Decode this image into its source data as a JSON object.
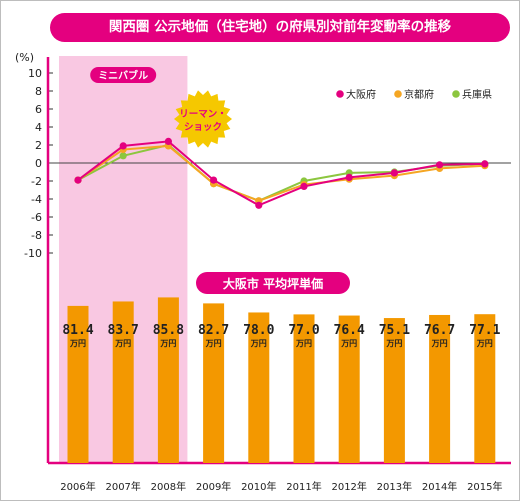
{
  "title": "関西圏 公示地価（住宅地）の府県別対前年変動率の推移",
  "chart_data": [
    {
      "type": "line",
      "ylabel": "(%)",
      "ylim": [
        -10,
        10
      ],
      "y_ticks": [
        "10",
        "8",
        "6",
        "4",
        "2",
        "0",
        "-2",
        "-4",
        "-6",
        "-8",
        "-10"
      ],
      "categories": [
        "2006年",
        "2007年",
        "2008年",
        "2009年",
        "2010年",
        "2011年",
        "2012年",
        "2013年",
        "2014年",
        "2015年"
      ],
      "series": [
        {
          "name": "大阪府",
          "color": "#e4007f",
          "values": [
            -1.9,
            1.9,
            2.4,
            -1.9,
            -4.7,
            -2.6,
            -1.6,
            -1.1,
            -0.2,
            -0.1
          ]
        },
        {
          "name": "京都府",
          "color": "#f5a623",
          "values": [
            -1.9,
            1.5,
            1.9,
            -2.3,
            -4.2,
            -2.4,
            -1.8,
            -1.4,
            -0.6,
            -0.3
          ]
        },
        {
          "name": "兵庫県",
          "color": "#8cc63f",
          "values": [
            -1.9,
            0.8,
            2.0,
            -2.3,
            -4.2,
            -2.0,
            -1.1,
            -1.0,
            -0.3,
            -0.1
          ]
        }
      ],
      "legend_position": "top-right",
      "grid": false,
      "highlight": {
        "label": "ミニバブル",
        "from": "2006年",
        "to": "2008年",
        "color": "#f9c8e2"
      },
      "annotation": {
        "lines": [
          "リーマン・",
          "ショック"
        ],
        "at": "2008年"
      }
    },
    {
      "type": "bar",
      "title": "大阪市 平均坪単価",
      "categories": [
        "2006年",
        "2007年",
        "2008年",
        "2009年",
        "2010年",
        "2011年",
        "2012年",
        "2013年",
        "2014年",
        "2015年"
      ],
      "values": [
        81.4,
        83.7,
        85.8,
        82.7,
        78.0,
        77.0,
        76.4,
        75.1,
        76.7,
        77.1
      ],
      "value_labels": [
        "81.4",
        "83.7",
        "85.8",
        "82.7",
        "78.0",
        "77.0",
        "76.4",
        "75.1",
        "76.7",
        "77.1"
      ],
      "unit": "万円",
      "color": "#f39800",
      "axis_color": "#e4007f"
    }
  ]
}
